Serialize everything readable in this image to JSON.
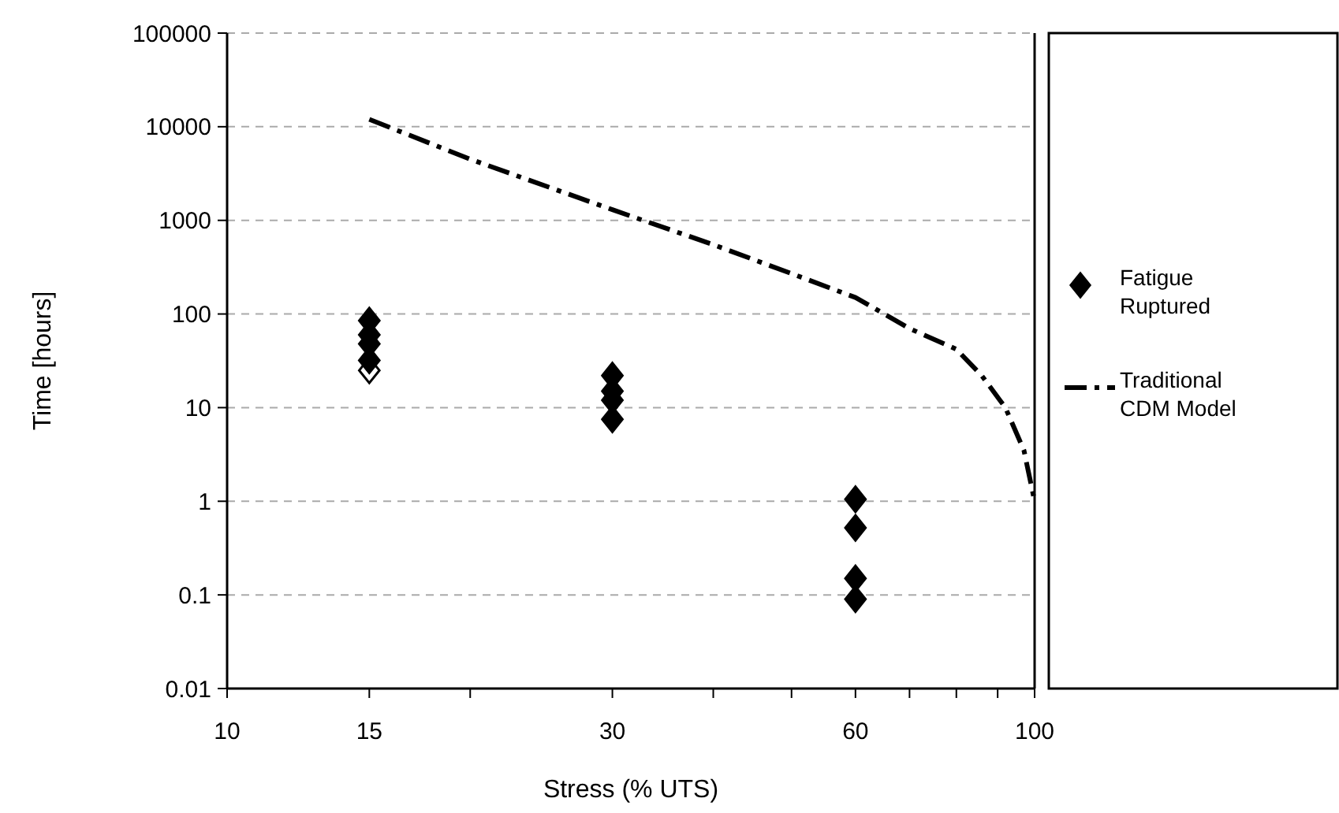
{
  "chart_data": {
    "type": "scatter",
    "xlabel": "Stress (% UTS)",
    "ylabel": "Time [hours]",
    "log": "xy",
    "grid": "y",
    "legend": "right",
    "marker": "diamond",
    "xlim": [
      10,
      100
    ],
    "xticks": [
      10,
      15,
      {
        "value": 20,
        "label": null
      },
      30,
      {
        "value": 40,
        "label": null
      },
      {
        "value": 50,
        "label": null
      },
      60,
      {
        "value": 70,
        "label": null
      },
      {
        "value": 80,
        "label": null
      },
      {
        "value": 90,
        "label": null
      },
      100
    ],
    "ylim": [
      0.01,
      100000
    ],
    "yticks": [
      0.01,
      0.1,
      1,
      10,
      100,
      1000,
      10000,
      100000
    ],
    "series": [
      {
        "color": "#ffffff",
        "x": [
          15
        ],
        "values": [
          25
        ]
      },
      {
        "name": "Fatigue Ruptured",
        "color": "#000000",
        "x": [
          15,
          15,
          15,
          15,
          30,
          30,
          30,
          30,
          60,
          60,
          60,
          60
        ],
        "values": [
          85,
          60,
          48,
          32,
          22,
          15,
          12,
          7.5,
          1.05,
          0.52,
          0.15,
          0.09
        ]
      },
      {
        "type": "line",
        "name": "Traditional CDM Model",
        "color": "#000000",
        "line_style": "dashed",
        "marker": "none",
        "x": [
          15,
          20,
          30,
          40,
          50,
          60,
          70,
          80,
          86,
          92,
          97,
          100
        ],
        "values": [
          12000,
          4500,
          1300,
          550,
          270,
          150,
          70,
          42,
          22,
          10,
          3.5,
          1
        ]
      }
    ]
  }
}
